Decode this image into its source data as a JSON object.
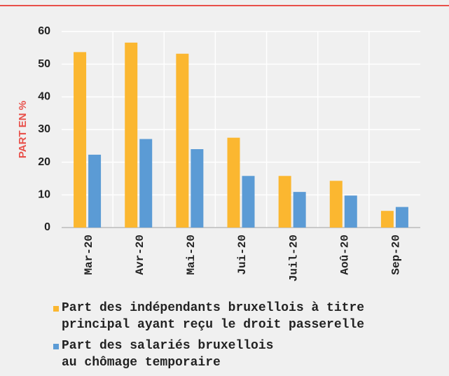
{
  "chart_data": {
    "type": "bar",
    "ylabel": "PART EN %",
    "categories": [
      "Mar-20",
      "Avr-20",
      "Mai-20",
      "Jui-20",
      "Juil-20",
      "Aoû-20",
      "Sep-20"
    ],
    "series": [
      {
        "name": "Part des indépendants bruxellois à titre\nprincipal ayant reçu le droit passerelle",
        "color": "#fbb730",
        "values": [
          53.7,
          56.6,
          53.2,
          27.5,
          15.8,
          14.3,
          5.1
        ]
      },
      {
        "name": "Part des salariés bruxellois\nau chômage temporaire",
        "color": "#5b9bd5",
        "values": [
          22.3,
          27.1,
          24.0,
          15.8,
          10.9,
          9.8,
          6.3
        ]
      }
    ],
    "ylim": [
      0,
      60
    ],
    "yticks": [
      0,
      10,
      20,
      30,
      40,
      50,
      60
    ],
    "grid": true
  }
}
